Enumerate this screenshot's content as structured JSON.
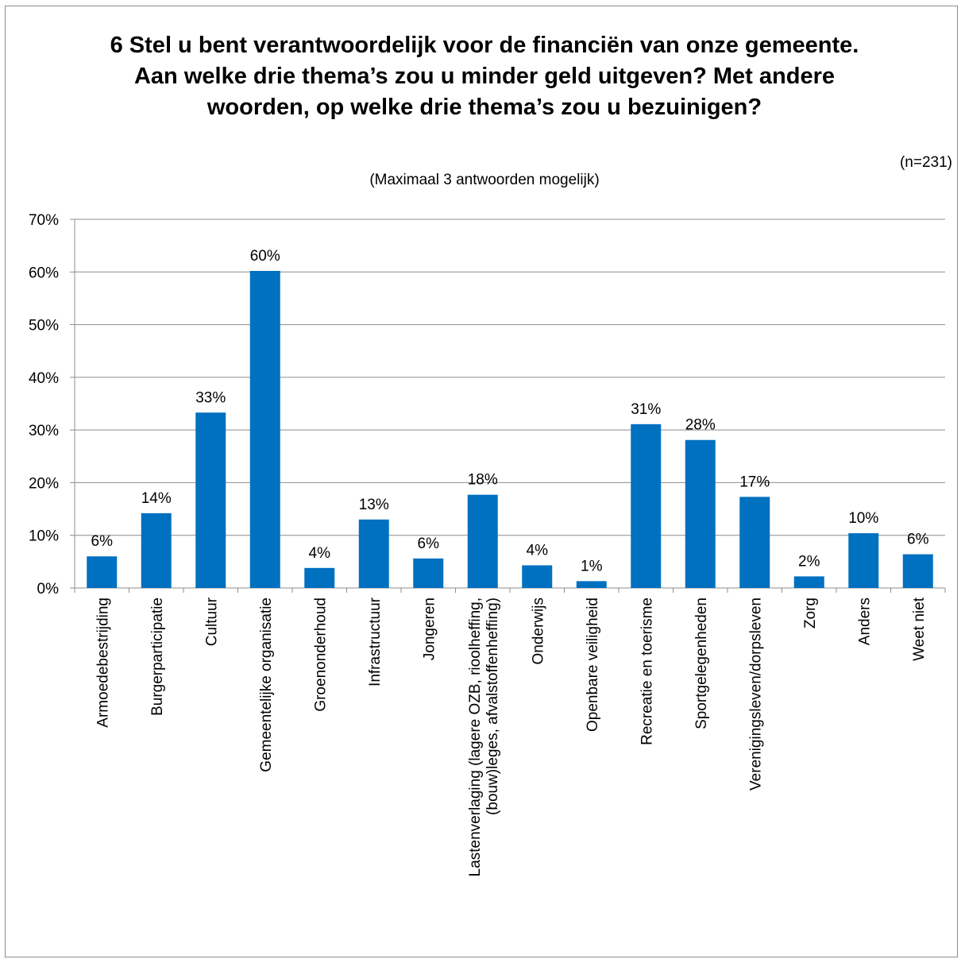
{
  "chart_data": {
    "type": "bar",
    "title": "6 Stel u bent verantwoordelijk voor de financiën van onze gemeente. Aan welke drie thema’s zou u minder geld uitgeven? Met andere woorden, op welke drie thema’s zou u bezuinigen?",
    "subtitle": "(Maximaal 3 antwoorden mogelijk)",
    "note": "(n=231)",
    "categories": [
      "Armoedebestrijding",
      "Burgerparticipatie",
      "Cultuur",
      "Gemeentelijke organisatie",
      "Groenonderhoud",
      "Infrastructuur",
      "Jongeren",
      "Lastenverlaging (lagere OZB, rioolheffing, (bouw)leges, afvalstoffenheffing)",
      "Onderwijs",
      "Openbare veiligheid",
      "Recreatie en toerisme",
      "Sportgelegenheden",
      "Verenigingsleven/dorpsleven",
      "Zorg",
      "Anders",
      "Weet niet"
    ],
    "category_lines": [
      [
        "Armoedebestrijding"
      ],
      [
        "Burgerparticipatie"
      ],
      [
        "Cultuur"
      ],
      [
        "Gemeentelijke organisatie"
      ],
      [
        "Groenonderhoud"
      ],
      [
        "Infrastructuur"
      ],
      [
        "Jongeren"
      ],
      [
        "Lastenverlaging (lagere OZB, rioolheffing,",
        "(bouw)leges, afvalstoffenheffing)"
      ],
      [
        "Onderwijs"
      ],
      [
        "Openbare veiligheid"
      ],
      [
        "Recreatie en toerisme"
      ],
      [
        "Sportgelegenheden"
      ],
      [
        "Verenigingsleven/dorpsleven"
      ],
      [
        "Zorg"
      ],
      [
        "Anders"
      ],
      [
        "Weet niet"
      ]
    ],
    "values": [
      6.0,
      14.2,
      33.3,
      60.2,
      3.8,
      13.0,
      5.6,
      17.7,
      4.3,
      1.3,
      31.1,
      28.1,
      17.3,
      2.2,
      10.4,
      6.4
    ],
    "data_labels": [
      "6%",
      "14%",
      "33%",
      "60%",
      "4%",
      "13%",
      "6%",
      "18%",
      "4%",
      "1%",
      "31%",
      "28%",
      "17%",
      "2%",
      "10%",
      "6%"
    ],
    "y_ticks": [
      "0%",
      "10%",
      "20%",
      "30%",
      "40%",
      "50%",
      "60%",
      "70%"
    ],
    "ylim": [
      0,
      70
    ],
    "grid": true,
    "legend": "none",
    "bar_color": "#0070C0"
  }
}
